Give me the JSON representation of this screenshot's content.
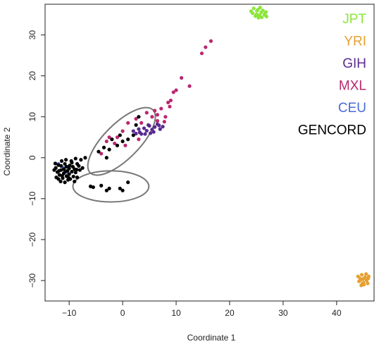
{
  "chart_data": {
    "type": "scatter",
    "xlabel": "Coordinate 1",
    "ylabel": "Coordinate 2",
    "xlim": [
      -14.5,
      47
    ],
    "ylim": [
      -35,
      37.5
    ],
    "xticks": [
      -10,
      0,
      10,
      20,
      30,
      40
    ],
    "yticks": [
      -30,
      -20,
      -10,
      0,
      10,
      20,
      30
    ],
    "xtick_labels": [
      "−10",
      "0",
      "10",
      "20",
      "30",
      "40"
    ],
    "ytick_labels": [
      "−30",
      "−20",
      "−10",
      "0",
      "10",
      "20",
      "30"
    ],
    "grid": false,
    "legend_position": "top-right",
    "series": [
      {
        "name": "JPT",
        "color": "#8ce63c",
        "points": [
          [
            24.0,
            35.8
          ],
          [
            24.5,
            36.5
          ],
          [
            25.0,
            35.0
          ],
          [
            25.3,
            36.2
          ],
          [
            25.6,
            34.8
          ],
          [
            25.9,
            35.5
          ],
          [
            26.2,
            36.0
          ],
          [
            26.5,
            34.9
          ],
          [
            26.8,
            35.6
          ],
          [
            24.8,
            34.6
          ],
          [
            25.4,
            34.2
          ],
          [
            26.0,
            34.3
          ],
          [
            26.6,
            35.2
          ],
          [
            25.1,
            35.9
          ],
          [
            24.3,
            35.3
          ],
          [
            25.7,
            36.7
          ],
          [
            26.9,
            34.5
          ],
          [
            25.2,
            34.9
          ]
        ]
      },
      {
        "name": "YRI",
        "color": "#e6a032",
        "points": [
          [
            44.0,
            -29.0
          ],
          [
            44.5,
            -29.8
          ],
          [
            45.0,
            -30.5
          ],
          [
            45.3,
            -29.2
          ],
          [
            44.7,
            -28.6
          ],
          [
            45.6,
            -30.0
          ],
          [
            45.9,
            -29.5
          ],
          [
            44.2,
            -30.2
          ],
          [
            45.1,
            -31.0
          ],
          [
            44.8,
            -30.8
          ],
          [
            45.5,
            -28.4
          ],
          [
            44.4,
            -29.5
          ],
          [
            45.8,
            -30.7
          ],
          [
            45.0,
            -29.6
          ],
          [
            44.6,
            -31.2
          ],
          [
            46.0,
            -29.0
          ]
        ]
      },
      {
        "name": "GIH",
        "color": "#5a2a90",
        "points": [
          [
            2.0,
            6.5
          ],
          [
            3.0,
            7.0
          ],
          [
            3.5,
            5.8
          ],
          [
            4.0,
            7.2
          ],
          [
            4.5,
            6.6
          ],
          [
            5.0,
            7.8
          ],
          [
            5.5,
            6.9
          ],
          [
            6.0,
            7.5
          ],
          [
            6.5,
            8.2
          ],
          [
            7.0,
            7.0
          ],
          [
            3.2,
            6.2
          ],
          [
            4.8,
            8.0
          ],
          [
            5.8,
            6.3
          ],
          [
            6.8,
            7.9
          ],
          [
            7.5,
            7.6
          ],
          [
            2.5,
            5.9
          ],
          [
            4.2,
            5.8
          ],
          [
            5.2,
            6.0
          ]
        ]
      },
      {
        "name": "MXL",
        "color": "#b92870",
        "points": [
          [
            16.5,
            28.5
          ],
          [
            15.5,
            27.0
          ],
          [
            14.8,
            25.5
          ],
          [
            11.0,
            19.5
          ],
          [
            12.5,
            17.5
          ],
          [
            10.0,
            16.5
          ],
          [
            9.0,
            14.0
          ],
          [
            8.5,
            13.5
          ],
          [
            7.2,
            12.0
          ],
          [
            8.8,
            12.5
          ],
          [
            6.0,
            11.5
          ],
          [
            4.5,
            11.0
          ],
          [
            5.5,
            10.0
          ],
          [
            8.0,
            10.0
          ],
          [
            6.5,
            9.0
          ],
          [
            7.8,
            8.8
          ],
          [
            3.5,
            8.5
          ],
          [
            2.5,
            9.5
          ],
          [
            1.0,
            8.5
          ],
          [
            0.0,
            6.5
          ],
          [
            -1.0,
            5.0
          ],
          [
            -2.5,
            5.0
          ],
          [
            -3.0,
            4.0
          ],
          [
            0.5,
            3.0
          ],
          [
            -4.0,
            1.0
          ],
          [
            -1.5,
            3.5
          ],
          [
            3.0,
            4.5
          ],
          [
            6.5,
            10.5
          ],
          [
            9.5,
            16.0
          ]
        ]
      },
      {
        "name": "CEU",
        "color": "#4a6ad8",
        "points": [
          [
            -12.0,
            -1.5
          ],
          [
            -11.0,
            -2.5
          ],
          [
            -10.5,
            -3.5
          ]
        ]
      },
      {
        "name": "GENCORD",
        "color": "#000000",
        "points": [
          [
            -12.5,
            -2.5
          ],
          [
            -12.2,
            -3.5
          ],
          [
            -12.0,
            -1.8
          ],
          [
            -11.8,
            -4.2
          ],
          [
            -11.5,
            -2.0
          ],
          [
            -11.5,
            -3.0
          ],
          [
            -11.2,
            -5.0
          ],
          [
            -11.0,
            -2.8
          ],
          [
            -11.0,
            -3.8
          ],
          [
            -10.8,
            -1.5
          ],
          [
            -10.5,
            -4.5
          ],
          [
            -10.5,
            -2.2
          ],
          [
            -10.3,
            -3.2
          ],
          [
            -10.0,
            -4.0
          ],
          [
            -10.0,
            -2.6
          ],
          [
            -9.8,
            -5.2
          ],
          [
            -9.5,
            -3.4
          ],
          [
            -9.5,
            -1.2
          ],
          [
            -9.2,
            -4.6
          ],
          [
            -9.0,
            -2.8
          ],
          [
            -8.8,
            -3.6
          ],
          [
            -8.5,
            -1.5
          ],
          [
            -8.5,
            -4.8
          ],
          [
            -8.2,
            -2.0
          ],
          [
            -8.0,
            -3.0
          ],
          [
            -7.8,
            -0.5
          ],
          [
            -7.5,
            -2.5
          ],
          [
            -7.0,
            0.0
          ],
          [
            -12.8,
            -3.0
          ],
          [
            -12.4,
            -4.8
          ],
          [
            -11.6,
            -5.8
          ],
          [
            -10.8,
            -6.0
          ],
          [
            -10.2,
            -5.4
          ],
          [
            -9.6,
            -0.8
          ],
          [
            -11.4,
            -0.8
          ],
          [
            -12.0,
            -5.2
          ],
          [
            -9.0,
            -5.8
          ],
          [
            -8.8,
            -0.2
          ],
          [
            -10.6,
            -0.5
          ],
          [
            -12.6,
            -1.4
          ],
          [
            -11.9,
            -3.2
          ],
          [
            -10.7,
            -3.3
          ],
          [
            -9.9,
            -1.9
          ],
          [
            -9.3,
            -2.2
          ],
          [
            -8.6,
            -2.9
          ],
          [
            -11.3,
            -4.4
          ],
          [
            -10.1,
            -4.9
          ],
          [
            -4.0,
            -6.8
          ],
          [
            -3.0,
            -8.0
          ],
          [
            -2.5,
            -7.5
          ],
          [
            1.0,
            -6.0
          ],
          [
            0.0,
            -8.0
          ],
          [
            -6.0,
            -7.0
          ],
          [
            -5.5,
            -7.2
          ],
          [
            -0.5,
            -7.5
          ],
          [
            -4.5,
            1.5
          ],
          [
            -3.0,
            0.0
          ],
          [
            -3.5,
            2.5
          ],
          [
            -2.0,
            4.5
          ],
          [
            -1.0,
            3.0
          ],
          [
            0.0,
            4.0
          ],
          [
            1.0,
            4.5
          ],
          [
            2.0,
            5.5
          ],
          [
            3.0,
            10.0
          ],
          [
            -2.5,
            2.0
          ],
          [
            -0.5,
            5.5
          ],
          [
            2.5,
            8.0
          ]
        ]
      }
    ],
    "annotations": [
      {
        "type": "ellipse",
        "cx": -0.2,
        "cy": 4.0,
        "rx": 8.3,
        "ry": 4.3,
        "angle_deg": 45
      },
      {
        "type": "ellipse",
        "cx": -2.2,
        "cy": -7.0,
        "rx": 7.1,
        "ry": 3.8,
        "angle_deg": 0
      }
    ]
  }
}
